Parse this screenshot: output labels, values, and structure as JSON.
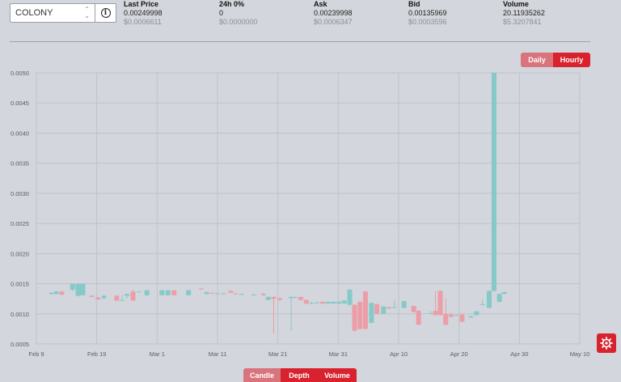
{
  "pair_selector": {
    "value": "COLONY",
    "icon": "chevron-up-down-icon"
  },
  "info_button": {
    "icon": "info-icon",
    "glyph": "i"
  },
  "stats": [
    {
      "label": "Last Price",
      "value": "0.00249998",
      "usd": "$0.0006611"
    },
    {
      "label": "24h 0%",
      "value": "0",
      "usd": "$0.0000000"
    },
    {
      "label": "Ask",
      "value": "0.00239998",
      "usd": "$0.0006347"
    },
    {
      "label": "Bid",
      "value": "0.00135969",
      "usd": "$0.0003596"
    },
    {
      "label": "Volume",
      "value": "20.11935262",
      "usd": "$5.3207841"
    }
  ],
  "timeframe": {
    "daily": "Daily",
    "hourly": "Hourly",
    "active": "Hourly"
  },
  "bottom_tabs": {
    "candle": "Candle",
    "depth": "Depth",
    "volume": "Volume",
    "active": "Candle"
  },
  "settings_icon": "gear-icon",
  "colors": {
    "up": "#86c9c9",
    "down": "#ec9ea8",
    "accent": "#d8232f",
    "accent_light": "#d9737c"
  },
  "chart_data": {
    "type": "candlestick",
    "ylim": [
      0.0005,
      0.005
    ],
    "yticks": [
      "0.0050",
      "0.0045",
      "0.0040",
      "0.0035",
      "0.0030",
      "0.0025",
      "0.0020",
      "0.0015",
      "0.0010",
      "0.0005"
    ],
    "xticks": [
      "Feb 9",
      "Feb 19",
      "Mar 1",
      "Mar 11",
      "Mar 21",
      "Mar 31",
      "Apr 10",
      "Apr 20",
      "Apr 30",
      "May 10"
    ],
    "xlim_days": [
      0,
      90
    ],
    "grid": true,
    "candles": [
      {
        "d": 2.5,
        "o": 0.00133,
        "c": 0.00135,
        "h": 0.00136,
        "l": 0.00132
      },
      {
        "d": 3.3,
        "o": 0.00133,
        "c": 0.00137,
        "h": 0.00138,
        "l": 0.00132
      },
      {
        "d": 4.2,
        "o": 0.00137,
        "c": 0.00132,
        "h": 0.00138,
        "l": 0.00131
      },
      {
        "d": 6.0,
        "o": 0.0014,
        "c": 0.0015,
        "h": 0.0015,
        "l": 0.00138
      },
      {
        "d": 6.9,
        "o": 0.0013,
        "c": 0.0015,
        "h": 0.0015,
        "l": 0.00129
      },
      {
        "d": 7.7,
        "o": 0.00131,
        "c": 0.0015,
        "h": 0.0015,
        "l": 0.0013
      },
      {
        "d": 9.2,
        "o": 0.0013,
        "c": 0.00128,
        "h": 0.00131,
        "l": 0.00128
      },
      {
        "d": 10.2,
        "o": 0.00127,
        "c": 0.00124,
        "h": 0.00128,
        "l": 0.00124
      },
      {
        "d": 11.2,
        "o": 0.00126,
        "c": 0.0013,
        "h": 0.00131,
        "l": 0.00124
      },
      {
        "d": 13.3,
        "o": 0.0013,
        "c": 0.00122,
        "h": 0.00131,
        "l": 0.00121
      },
      {
        "d": 14.2,
        "o": 0.00123,
        "c": 0.00123,
        "h": 0.00131,
        "l": 0.00123
      },
      {
        "d": 15.0,
        "o": 0.0013,
        "c": 0.00133,
        "h": 0.00134,
        "l": 0.00125
      },
      {
        "d": 16.0,
        "o": 0.00137,
        "c": 0.00122,
        "h": 0.0014,
        "l": 0.00121
      },
      {
        "d": 17.0,
        "o": 0.00137,
        "c": 0.00137,
        "h": 0.00138,
        "l": 0.00136
      },
      {
        "d": 18.3,
        "o": 0.00131,
        "c": 0.00139,
        "h": 0.0014,
        "l": 0.0013
      },
      {
        "d": 20.8,
        "o": 0.00131,
        "c": 0.00139,
        "h": 0.0014,
        "l": 0.00131
      },
      {
        "d": 21.8,
        "o": 0.00131,
        "c": 0.00139,
        "h": 0.0014,
        "l": 0.00131
      },
      {
        "d": 22.8,
        "o": 0.00139,
        "c": 0.00131,
        "h": 0.0014,
        "l": 0.0013
      },
      {
        "d": 25.2,
        "o": 0.00131,
        "c": 0.00139,
        "h": 0.0014,
        "l": 0.00131
      },
      {
        "d": 27.3,
        "o": 0.00142,
        "c": 0.00141,
        "h": 0.00143,
        "l": 0.0014
      },
      {
        "d": 28.2,
        "o": 0.00133,
        "c": 0.00136,
        "h": 0.00137,
        "l": 0.00132
      },
      {
        "d": 29.1,
        "o": 0.00135,
        "c": 0.00134,
        "h": 0.00136,
        "l": 0.00133
      },
      {
        "d": 30.0,
        "o": 0.00133,
        "c": 0.00134,
        "h": 0.00135,
        "l": 0.00132
      },
      {
        "d": 31.0,
        "o": 0.00134,
        "c": 0.00134,
        "h": 0.00135,
        "l": 0.00133
      },
      {
        "d": 32.2,
        "o": 0.00138,
        "c": 0.00135,
        "h": 0.00139,
        "l": 0.00134
      },
      {
        "d": 33.0,
        "o": 0.00134,
        "c": 0.00133,
        "h": 0.00135,
        "l": 0.00132
      },
      {
        "d": 34.0,
        "o": 0.00133,
        "c": 0.00133,
        "h": 0.00134,
        "l": 0.00132
      },
      {
        "d": 36.0,
        "o": 0.00132,
        "c": 0.00132,
        "h": 0.00133,
        "l": 0.00131
      },
      {
        "d": 37.6,
        "o": 0.00133,
        "c": 0.00131,
        "h": 0.00135,
        "l": 0.0013
      },
      {
        "d": 38.4,
        "o": 0.00123,
        "c": 0.00128,
        "h": 0.00129,
        "l": 0.00123
      },
      {
        "d": 39.3,
        "o": 0.00128,
        "c": 0.00125,
        "h": 0.00129,
        "l": 0.00067
      },
      {
        "d": 40.3,
        "o": 0.00126,
        "c": 0.00123,
        "h": 0.00127,
        "l": 0.00122
      },
      {
        "d": 42.2,
        "o": 0.00126,
        "c": 0.00128,
        "h": 0.00129,
        "l": 0.00072
      },
      {
        "d": 42.9,
        "o": 0.00127,
        "c": 0.00128,
        "h": 0.00129,
        "l": 0.00126
      },
      {
        "d": 43.8,
        "o": 0.00128,
        "c": 0.00123,
        "h": 0.00129,
        "l": 0.00122
      },
      {
        "d": 44.7,
        "o": 0.00123,
        "c": 0.00117,
        "h": 0.00124,
        "l": 0.00116
      },
      {
        "d": 45.6,
        "o": 0.00118,
        "c": 0.00118,
        "h": 0.0012,
        "l": 0.00116
      },
      {
        "d": 46.5,
        "o": 0.00118,
        "c": 0.00119,
        "h": 0.0012,
        "l": 0.00117
      },
      {
        "d": 47.4,
        "o": 0.0012,
        "c": 0.00117,
        "h": 0.00121,
        "l": 0.00116
      },
      {
        "d": 48.3,
        "o": 0.00117,
        "c": 0.0012,
        "h": 0.00121,
        "l": 0.00117
      },
      {
        "d": 49.2,
        "o": 0.00117,
        "c": 0.0012,
        "h": 0.00121,
        "l": 0.00117
      },
      {
        "d": 50.1,
        "o": 0.00117,
        "c": 0.0012,
        "h": 0.00121,
        "l": 0.00117
      },
      {
        "d": 51.0,
        "o": 0.00117,
        "c": 0.00122,
        "h": 0.00123,
        "l": 0.00117
      },
      {
        "d": 51.9,
        "o": 0.00115,
        "c": 0.0014,
        "h": 0.00141,
        "l": 0.00114
      },
      {
        "d": 52.7,
        "o": 0.00115,
        "c": 0.00072,
        "h": 0.00116,
        "l": 0.00071
      },
      {
        "d": 53.6,
        "o": 0.0012,
        "c": 0.00075,
        "h": 0.00121,
        "l": 0.00074
      },
      {
        "d": 54.5,
        "o": 0.00137,
        "c": 0.00075,
        "h": 0.00138,
        "l": 0.00074
      },
      {
        "d": 55.5,
        "o": 0.00085,
        "c": 0.00118,
        "h": 0.00119,
        "l": 0.00084
      },
      {
        "d": 56.4,
        "o": 0.00116,
        "c": 0.001,
        "h": 0.00117,
        "l": 0.00099
      },
      {
        "d": 57.5,
        "o": 0.001,
        "c": 0.00112,
        "h": 0.00113,
        "l": 0.00099
      },
      {
        "d": 58.4,
        "o": 0.00111,
        "c": 0.00109,
        "h": 0.00112,
        "l": 0.00108
      },
      {
        "d": 59.3,
        "o": 0.00111,
        "c": 0.00111,
        "h": 0.00122,
        "l": 0.0011
      },
      {
        "d": 60.9,
        "o": 0.0011,
        "c": 0.00121,
        "h": 0.00122,
        "l": 0.00109
      },
      {
        "d": 62.5,
        "o": 0.00113,
        "c": 0.00103,
        "h": 0.00114,
        "l": 0.00102
      },
      {
        "d": 63.3,
        "o": 0.00105,
        "c": 0.00082,
        "h": 0.00106,
        "l": 0.00081
      },
      {
        "d": 65.3,
        "o": 0.00101,
        "c": 0.00101,
        "h": 0.00105,
        "l": 0.001
      },
      {
        "d": 66.1,
        "o": 0.00105,
        "c": 0.00098,
        "h": 0.00138,
        "l": 0.00097
      },
      {
        "d": 66.9,
        "o": 0.00138,
        "c": 0.00098,
        "h": 0.00139,
        "l": 0.00097
      },
      {
        "d": 67.8,
        "o": 0.001,
        "c": 0.00082,
        "h": 0.00126,
        "l": 0.00081
      },
      {
        "d": 68.7,
        "o": 0.00099,
        "c": 0.00095,
        "h": 0.001,
        "l": 0.00094
      },
      {
        "d": 69.6,
        "o": 0.00098,
        "c": 0.00098,
        "h": 0.00099,
        "l": 0.00097
      },
      {
        "d": 70.5,
        "o": 0.00099,
        "c": 0.00087,
        "h": 0.001,
        "l": 0.00086
      },
      {
        "d": 72.0,
        "o": 0.00094,
        "c": 0.00096,
        "h": 0.00097,
        "l": 0.00093
      },
      {
        "d": 72.9,
        "o": 0.00098,
        "c": 0.00104,
        "h": 0.00105,
        "l": 0.00097
      },
      {
        "d": 73.9,
        "o": 0.00116,
        "c": 0.00116,
        "h": 0.00124,
        "l": 0.00115
      },
      {
        "d": 75.0,
        "o": 0.0011,
        "c": 0.00138,
        "h": 0.00139,
        "l": 0.00109
      },
      {
        "d": 75.8,
        "o": 0.00138,
        "c": 0.005,
        "h": 0.005,
        "l": 0.00137
      },
      {
        "d": 76.7,
        "o": 0.0012,
        "c": 0.00133,
        "h": 0.00134,
        "l": 0.00119
      },
      {
        "d": 77.5,
        "o": 0.00133,
        "c": 0.00136,
        "h": 0.00137,
        "l": 0.00132
      }
    ]
  }
}
